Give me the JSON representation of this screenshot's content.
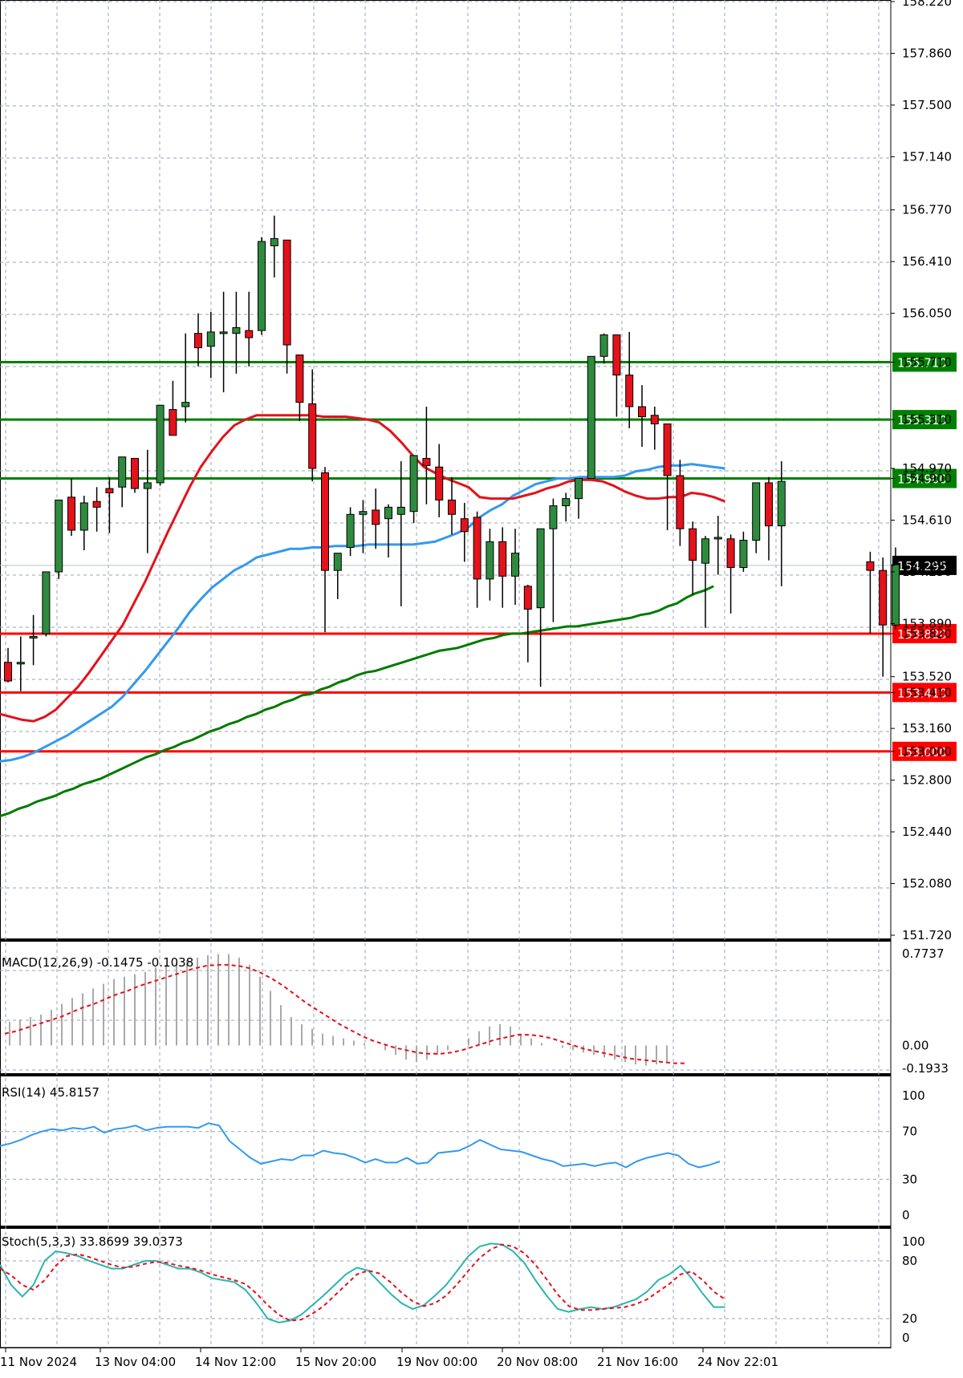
{
  "chart_data": {
    "type": "candlestick",
    "price_ticks": [
      "158.220",
      "157.860",
      "157.500",
      "157.140",
      "156.770",
      "156.410",
      "156.050",
      "155.710",
      "155.310",
      "154.970",
      "154.900",
      "154.610",
      "154.295",
      "154.250",
      "153.890",
      "153.820",
      "153.520",
      "153.410",
      "153.160",
      "153.000",
      "152.800",
      "152.440",
      "152.080",
      "151.720"
    ],
    "price_range": [
      151.72,
      158.22
    ],
    "time_labels": [
      "11 Nov 2024",
      "13 Nov 04:00",
      "14 Nov 12:00",
      "15 Nov 20:00",
      "19 Nov 00:00",
      "20 Nov 08:00",
      "21 Nov 16:00",
      "24 Nov 22:01"
    ],
    "levels": [
      {
        "label": "155.710",
        "value": 155.71,
        "color": "#008000"
      },
      {
        "label": "155.310",
        "value": 155.31,
        "color": "#008000"
      },
      {
        "label": "154.900",
        "value": 154.9,
        "color": "#008000"
      },
      {
        "label": "153.820",
        "value": 153.82,
        "color": "#ff0000"
      },
      {
        "label": "153.410",
        "value": 153.41,
        "color": "#ff0000"
      },
      {
        "label": "153.000",
        "value": 153.0,
        "color": "#ff0000"
      }
    ],
    "current_price": {
      "label": "154.295",
      "value": 154.295
    },
    "candles": [
      [
        153.62,
        153.72,
        153.49,
        153.48
      ],
      [
        153.62,
        153.8,
        153.62,
        153.42
      ],
      [
        153.8,
        153.95,
        153.8,
        153.6
      ],
      [
        153.82,
        154.25,
        154.25,
        153.8
      ],
      [
        154.25,
        154.75,
        154.75,
        154.2
      ],
      [
        154.77,
        154.9,
        154.54,
        154.5
      ],
      [
        154.54,
        154.78,
        154.73,
        154.4
      ],
      [
        154.74,
        154.84,
        154.7,
        154.53
      ],
      [
        154.83,
        154.91,
        154.8,
        154.52
      ],
      [
        154.84,
        155.04,
        155.05,
        154.7
      ],
      [
        155.04,
        155.02,
        154.83,
        154.8
      ],
      [
        154.83,
        155.1,
        154.87,
        154.38
      ],
      [
        154.87,
        155.4,
        155.41,
        154.85
      ],
      [
        155.38,
        155.58,
        155.2,
        155.22
      ],
      [
        155.4,
        155.91,
        155.43,
        155.29
      ],
      [
        155.91,
        156.05,
        155.81,
        155.68
      ],
      [
        155.82,
        156.06,
        155.92,
        155.6
      ],
      [
        155.92,
        156.2,
        155.92,
        155.5
      ],
      [
        155.91,
        156.2,
        155.95,
        155.63
      ],
      [
        155.93,
        156.2,
        155.88,
        155.68
      ],
      [
        155.93,
        156.58,
        156.55,
        155.9
      ],
      [
        156.52,
        156.73,
        156.57,
        156.3
      ],
      [
        156.56,
        156.53,
        155.83,
        155.63
      ],
      [
        155.76,
        155.72,
        155.43,
        155.3
      ],
      [
        155.42,
        155.66,
        154.97,
        154.88
      ],
      [
        154.94,
        154.98,
        154.26,
        153.83
      ],
      [
        154.26,
        154.38,
        154.38,
        154.06
      ],
      [
        154.42,
        154.7,
        154.65,
        154.36
      ],
      [
        154.65,
        154.75,
        154.67,
        154.38
      ],
      [
        154.68,
        154.83,
        154.58,
        154.41
      ],
      [
        154.62,
        154.72,
        154.7,
        154.35
      ],
      [
        154.65,
        155.02,
        154.7,
        154.01
      ],
      [
        154.67,
        155.04,
        155.06,
        154.59
      ],
      [
        155.04,
        155.4,
        154.99,
        154.72
      ],
      [
        154.98,
        155.14,
        154.75,
        154.63
      ],
      [
        154.75,
        154.91,
        154.65,
        154.51
      ],
      [
        154.62,
        154.73,
        154.53,
        154.32
      ],
      [
        154.63,
        154.67,
        154.2,
        154.0
      ],
      [
        154.2,
        154.55,
        154.46,
        154.05
      ],
      [
        154.46,
        154.56,
        154.22,
        154.0
      ],
      [
        154.22,
        154.55,
        154.38,
        154.02
      ],
      [
        154.15,
        154.16,
        153.99,
        153.62
      ],
      [
        154.0,
        154.2,
        154.55,
        153.45
      ],
      [
        154.55,
        154.76,
        154.71,
        153.9
      ],
      [
        154.71,
        154.8,
        154.76,
        154.6
      ],
      [
        154.76,
        154.78,
        154.9,
        154.62
      ],
      [
        154.9,
        154.95,
        155.75,
        154.9
      ],
      [
        155.75,
        155.91,
        155.9,
        155.7
      ],
      [
        155.9,
        155.85,
        155.62,
        155.33
      ],
      [
        155.62,
        155.92,
        155.4,
        155.25
      ],
      [
        155.4,
        155.55,
        155.33,
        155.12
      ],
      [
        155.34,
        155.4,
        155.28,
        155.1
      ],
      [
        155.28,
        155.21,
        154.92,
        154.54
      ],
      [
        154.92,
        155.03,
        154.55,
        154.43
      ],
      [
        154.55,
        154.6,
        154.33,
        154.09
      ],
      [
        154.31,
        154.5,
        154.48,
        153.86
      ],
      [
        154.49,
        154.64,
        154.49,
        154.23
      ],
      [
        154.48,
        154.51,
        154.28,
        153.96
      ],
      [
        154.28,
        154.53,
        154.47,
        154.25
      ],
      [
        154.47,
        154.8,
        154.87,
        154.38
      ],
      [
        154.87,
        154.91,
        154.57,
        154.33
      ],
      [
        154.57,
        155.02,
        154.88,
        154.15
      ],
      [
        154.88,
        154.94,
        154.78,
        154.67
      ],
      [
        154.78,
        154.83,
        154.73,
        154.65
      ],
      [
        154.73,
        154.84,
        154.71,
        154.66
      ],
      [
        154.71,
        154.81,
        154.71,
        154.65
      ],
      [
        154.71,
        154.79,
        154.71,
        154.6
      ],
      [
        154.7,
        154.7,
        154.72,
        154.53
      ],
      [
        154.32,
        154.39,
        154.26,
        153.82
      ],
      [
        154.26,
        154.35,
        153.88,
        153.52
      ],
      [
        153.88,
        154.42,
        154.3,
        153.85
      ]
    ],
    "candle_visible": [
      1,
      1,
      1,
      1,
      1,
      1,
      1,
      1,
      1,
      1,
      1,
      1,
      1,
      1,
      1,
      1,
      1,
      1,
      1,
      1,
      1,
      1,
      1,
      1,
      1,
      1,
      1,
      1,
      1,
      1,
      1,
      1,
      1,
      1,
      1,
      1,
      1,
      1,
      1,
      1,
      1,
      1,
      1,
      1,
      1,
      1,
      1,
      1,
      1,
      1,
      1,
      1,
      1,
      1,
      1,
      1,
      1,
      1,
      1,
      1,
      1,
      1,
      0,
      0,
      0,
      0,
      0,
      0,
      1,
      1,
      1
    ],
    "ma_red": [
      153.26,
      153.24,
      153.22,
      153.21,
      153.24,
      153.29,
      153.37,
      153.45,
      153.55,
      153.66,
      153.77,
      153.88,
      154.03,
      154.18,
      154.35,
      154.52,
      154.68,
      154.84,
      154.98,
      155.09,
      155.19,
      155.27,
      155.31,
      155.34,
      155.34,
      155.34,
      155.34,
      155.34,
      155.34,
      155.33,
      155.33,
      155.33,
      155.32,
      155.31,
      155.29,
      155.23,
      155.15,
      155.06,
      154.98,
      154.94,
      154.9,
      154.87,
      154.84,
      154.77,
      154.76,
      154.76,
      154.76,
      154.78,
      154.8,
      154.83,
      154.85,
      154.88,
      154.89,
      154.89,
      154.88,
      154.85,
      154.81,
      154.78,
      154.76,
      154.76,
      154.77,
      154.77,
      154.8,
      154.79,
      154.77,
      154.74
    ],
    "ma_blue": [
      152.93,
      152.94,
      152.96,
      152.99,
      153.03,
      153.07,
      153.11,
      153.16,
      153.21,
      153.26,
      153.31,
      153.38,
      153.47,
      153.56,
      153.66,
      153.76,
      153.86,
      153.97,
      154.06,
      154.14,
      154.2,
      154.26,
      154.3,
      154.35,
      154.37,
      154.39,
      154.41,
      154.41,
      154.42,
      154.42,
      154.43,
      154.43,
      154.43,
      154.44,
      154.44,
      154.44,
      154.44,
      154.44,
      154.45,
      154.46,
      154.49,
      154.52,
      154.56,
      154.63,
      154.68,
      154.72,
      154.78,
      154.82,
      154.86,
      154.88,
      154.9,
      154.9,
      154.91,
      154.91,
      154.91,
      154.91,
      154.92,
      154.95,
      154.96,
      154.98,
      154.99,
      154.99,
      155.0,
      154.99,
      154.98,
      154.97
    ],
    "ma_green": [
      152.55,
      152.57,
      152.6,
      152.62,
      152.65,
      152.67,
      152.69,
      152.72,
      152.74,
      152.77,
      152.79,
      152.81,
      152.84,
      152.87,
      152.9,
      152.93,
      152.96,
      152.98,
      153.01,
      153.03,
      153.06,
      153.08,
      153.11,
      153.14,
      153.16,
      153.19,
      153.21,
      153.24,
      153.26,
      153.29,
      153.31,
      153.34,
      153.36,
      153.39,
      153.4,
      153.43,
      153.45,
      153.48,
      153.5,
      153.53,
      153.55,
      153.56,
      153.58,
      153.6,
      153.62,
      153.64,
      153.66,
      153.68,
      153.7,
      153.71,
      153.72,
      153.74,
      153.76,
      153.78,
      153.79,
      153.81,
      153.82,
      153.82,
      153.83,
      153.84,
      153.85,
      153.86,
      153.87,
      153.87,
      153.88,
      153.89,
      153.9,
      153.91,
      153.92,
      153.93,
      153.95,
      153.96,
      153.98,
      154.01,
      154.03,
      154.07,
      154.1,
      154.12,
      154.15
    ],
    "macd": {
      "label": "MACD(12,26,9) -0.1475 -0.1038",
      "ticks": [
        "0.7737",
        "0.00",
        "-0.1933"
      ],
      "range": [
        -0.1933,
        0.7737
      ],
      "histogram": [
        0.2,
        0.22,
        0.24,
        0.26,
        0.3,
        0.35,
        0.4,
        0.44,
        0.48,
        0.52,
        0.56,
        0.58,
        0.6,
        0.62,
        0.66,
        0.68,
        0.7,
        0.72,
        0.74,
        0.76,
        0.77,
        0.77,
        0.74,
        0.68,
        0.58,
        0.46,
        0.34,
        0.24,
        0.18,
        0.14,
        0.1,
        0.08,
        0.06,
        0.04,
        0.02,
        0.0,
        -0.04,
        -0.08,
        -0.12,
        -0.14,
        -0.12,
        -0.08,
        -0.04,
        0.0,
        0.06,
        0.12,
        0.16,
        0.18,
        0.16,
        0.1,
        0.06,
        0.02,
        0.0,
        -0.02,
        -0.04,
        -0.06,
        -0.08,
        -0.1,
        -0.12,
        -0.14,
        -0.16,
        -0.17,
        -0.16,
        -0.15
      ],
      "signal": [
        0.1,
        0.12,
        0.15,
        0.18,
        0.21,
        0.24,
        0.28,
        0.32,
        0.35,
        0.39,
        0.43,
        0.46,
        0.5,
        0.53,
        0.56,
        0.59,
        0.62,
        0.65,
        0.67,
        0.68,
        0.68,
        0.67,
        0.65,
        0.61,
        0.56,
        0.5,
        0.43,
        0.36,
        0.3,
        0.24,
        0.18,
        0.13,
        0.08,
        0.04,
        0.01,
        -0.02,
        -0.04,
        -0.06,
        -0.07,
        -0.07,
        -0.06,
        -0.04,
        -0.01,
        0.02,
        0.05,
        0.07,
        0.09,
        0.09,
        0.08,
        0.06,
        0.03,
        0.0,
        -0.03,
        -0.05,
        -0.07,
        -0.09,
        -0.11,
        -0.12,
        -0.13,
        -0.14,
        -0.15,
        -0.15
      ]
    },
    "rsi": {
      "label": "RSI(14) 45.8157",
      "ticks": [
        "100",
        "70",
        "30",
        "0"
      ],
      "range": [
        0,
        100
      ],
      "values": [
        58,
        60,
        63,
        67,
        70,
        72,
        71,
        73,
        72,
        74,
        69,
        72,
        73,
        75,
        71,
        73,
        74,
        74,
        74,
        73,
        77,
        75,
        62,
        55,
        48,
        43,
        45,
        47,
        46,
        50,
        50,
        54,
        52,
        51,
        48,
        44,
        47,
        44,
        44,
        48,
        43,
        44,
        52,
        53,
        54,
        58,
        63,
        59,
        55,
        54,
        53,
        50,
        47,
        45,
        41,
        42,
        43,
        41,
        43,
        44,
        40,
        45,
        48,
        50,
        52,
        50,
        43,
        40,
        42,
        45
      ]
    },
    "stoch": {
      "label": "Stoch(5,3,3) 33.8699 39.0373",
      "ticks": [
        "100",
        "80",
        "20",
        "0"
      ],
      "range": [
        0,
        100
      ],
      "main": [
        76,
        55,
        43,
        55,
        80,
        90,
        88,
        85,
        80,
        76,
        72,
        72,
        76,
        80,
        80,
        76,
        72,
        72,
        68,
        62,
        60,
        58,
        50,
        36,
        20,
        16,
        18,
        24,
        34,
        44,
        55,
        66,
        73,
        70,
        58,
        46,
        36,
        30,
        34,
        44,
        55,
        70,
        85,
        95,
        98,
        97,
        90,
        78,
        60,
        44,
        30,
        27,
        30,
        32,
        30,
        32,
        36,
        40,
        48,
        60,
        66,
        75,
        62,
        46,
        32,
        32
      ],
      "signal": [
        72,
        65,
        55,
        50,
        60,
        75,
        85,
        87,
        84,
        80,
        76,
        73,
        74,
        77,
        79,
        78,
        75,
        73,
        70,
        66,
        63,
        60,
        56,
        46,
        34,
        24,
        18,
        19,
        25,
        33,
        44,
        55,
        66,
        70,
        67,
        58,
        47,
        38,
        33,
        36,
        44,
        56,
        70,
        83,
        92,
        97,
        95,
        88,
        76,
        61,
        45,
        33,
        29,
        29,
        30,
        31,
        32,
        35,
        40,
        48,
        56,
        66,
        69,
        60,
        48,
        40
      ]
    }
  }
}
